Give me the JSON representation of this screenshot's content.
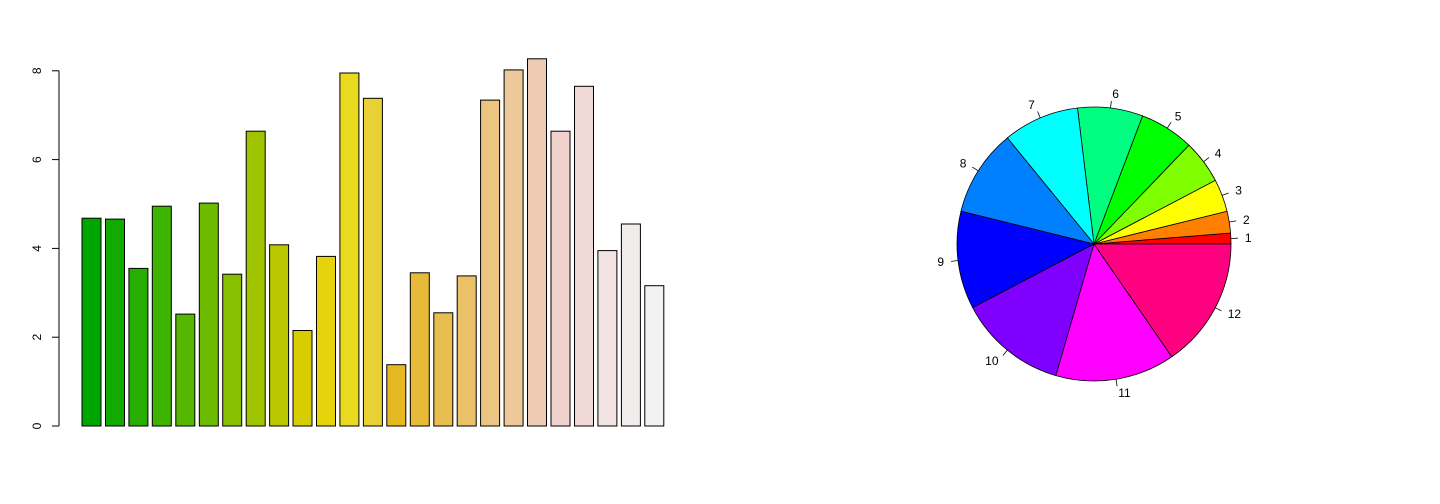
{
  "chart_data": [
    {
      "type": "bar",
      "title": "",
      "xlabel": "",
      "ylabel": "",
      "ylim": [
        0,
        8.3
      ],
      "y_ticks": [
        0,
        2,
        4,
        6,
        8
      ],
      "grid": false,
      "legend": "none",
      "values": [
        4.68,
        4.66,
        3.55,
        4.95,
        2.52,
        5.02,
        3.42,
        6.64,
        4.08,
        2.15,
        3.82,
        7.95,
        7.38,
        1.38,
        3.45,
        2.55,
        3.38,
        7.34,
        8.02,
        8.27,
        6.64,
        7.65,
        3.95,
        4.55,
        3.16
      ],
      "colors": [
        "#00A600",
        "#13AA00",
        "#28AE00",
        "#3EB300",
        "#55B700",
        "#6DBB00",
        "#86C000",
        "#A0C400",
        "#BBC800",
        "#D7CD00",
        "#E6D30B",
        "#E8DA1E",
        "#E9D034",
        "#E6B922",
        "#E7BB38",
        "#E8BE50",
        "#EAC168",
        "#EBC581",
        "#EDC89A",
        "#EECCB3",
        "#F0D1CC",
        "#F1D9D8",
        "#F2E3E3",
        "#F2EDED",
        "#F2F2F2"
      ]
    },
    {
      "type": "pie",
      "title": "",
      "grid": false,
      "legend": "none",
      "labels": [
        "1",
        "2",
        "3",
        "4",
        "5",
        "6",
        "7",
        "8",
        "9",
        "10",
        "11",
        "12"
      ],
      "values": [
        1,
        2,
        3,
        4,
        5,
        6,
        7,
        8,
        9,
        10,
        11,
        12
      ],
      "colors": [
        "#FF0000",
        "#FF8000",
        "#FFFF00",
        "#80FF00",
        "#00FF00",
        "#00FF80",
        "#00FFFF",
        "#0080FF",
        "#0000FF",
        "#8000FF",
        "#FF00FF",
        "#FF0080"
      ]
    }
  ]
}
